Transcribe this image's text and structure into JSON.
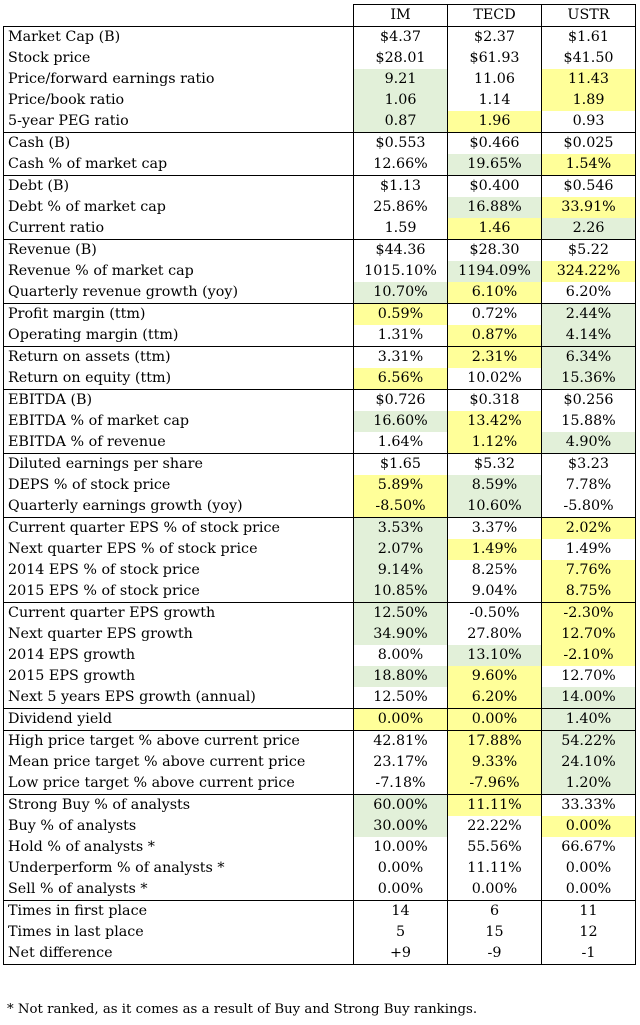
{
  "columns": [
    "IM",
    "TECD",
    "USTR"
  ],
  "colors": {
    "green": "#e2f0d9",
    "yellow": "#ffff99"
  },
  "sections": [
    {
      "rows": [
        {
          "label": "Market Cap (B)",
          "values": [
            "$4.37",
            "$2.37",
            "$1.61"
          ],
          "hl": [
            "",
            "",
            ""
          ]
        },
        {
          "label": "Stock price",
          "values": [
            "$28.01",
            "$61.93",
            "$41.50"
          ],
          "hl": [
            "",
            "",
            ""
          ]
        },
        {
          "label": "Price/forward earnings ratio",
          "values": [
            "9.21",
            "11.06",
            "11.43"
          ],
          "hl": [
            "g",
            "",
            "y"
          ]
        },
        {
          "label": "Price/book ratio",
          "values": [
            "1.06",
            "1.14",
            "1.89"
          ],
          "hl": [
            "g",
            "",
            "y"
          ]
        },
        {
          "label": "5-year PEG ratio",
          "values": [
            "0.87",
            "1.96",
            "0.93"
          ],
          "hl": [
            "g",
            "y",
            ""
          ]
        }
      ]
    },
    {
      "rows": [
        {
          "label": "Cash (B)",
          "values": [
            "$0.553",
            "$0.466",
            "$0.025"
          ],
          "hl": [
            "",
            "",
            ""
          ]
        },
        {
          "label": "Cash % of market cap",
          "values": [
            "12.66%",
            "19.65%",
            "1.54%"
          ],
          "hl": [
            "",
            "g",
            "y"
          ]
        }
      ]
    },
    {
      "rows": [
        {
          "label": "Debt (B)",
          "values": [
            "$1.13",
            "$0.400",
            "$0.546"
          ],
          "hl": [
            "",
            "",
            ""
          ]
        },
        {
          "label": "Debt % of market cap",
          "values": [
            "25.86%",
            "16.88%",
            "33.91%"
          ],
          "hl": [
            "",
            "g",
            "y"
          ]
        },
        {
          "label": "Current ratio",
          "values": [
            "1.59",
            "1.46",
            "2.26"
          ],
          "hl": [
            "",
            "y",
            "g"
          ]
        }
      ]
    },
    {
      "rows": [
        {
          "label": "Revenue (B)",
          "values": [
            "$44.36",
            "$28.30",
            "$5.22"
          ],
          "hl": [
            "",
            "",
            ""
          ]
        },
        {
          "label": "Revenue % of market cap",
          "values": [
            "1015.10%",
            "1194.09%",
            "324.22%"
          ],
          "hl": [
            "",
            "g",
            "y"
          ]
        },
        {
          "label": "Quarterly revenue growth (yoy)",
          "values": [
            "10.70%",
            "6.10%",
            "6.20%"
          ],
          "hl": [
            "g",
            "y",
            ""
          ]
        }
      ]
    },
    {
      "rows": [
        {
          "label": "Profit margin (ttm)",
          "values": [
            "0.59%",
            "0.72%",
            "2.44%"
          ],
          "hl": [
            "y",
            "",
            "g"
          ]
        },
        {
          "label": "Operating margin (ttm)",
          "values": [
            "1.31%",
            "0.87%",
            "4.14%"
          ],
          "hl": [
            "",
            "y",
            "g"
          ]
        }
      ]
    },
    {
      "rows": [
        {
          "label": "Return on assets (ttm)",
          "values": [
            "3.31%",
            "2.31%",
            "6.34%"
          ],
          "hl": [
            "",
            "y",
            "g"
          ]
        },
        {
          "label": "Return on equity (ttm)",
          "values": [
            "6.56%",
            "10.02%",
            "15.36%"
          ],
          "hl": [
            "y",
            "",
            "g"
          ]
        }
      ]
    },
    {
      "rows": [
        {
          "label": "EBITDA (B)",
          "values": [
            "$0.726",
            "$0.318",
            "$0.256"
          ],
          "hl": [
            "",
            "",
            ""
          ]
        },
        {
          "label": "EBITDA % of market cap",
          "values": [
            "16.60%",
            "13.42%",
            "15.88%"
          ],
          "hl": [
            "g",
            "y",
            ""
          ]
        },
        {
          "label": "EBITDA % of revenue",
          "values": [
            "1.64%",
            "1.12%",
            "4.90%"
          ],
          "hl": [
            "",
            "y",
            "g"
          ]
        }
      ]
    },
    {
      "rows": [
        {
          "label": "Diluted earnings per share",
          "values": [
            "$1.65",
            "$5.32",
            "$3.23"
          ],
          "hl": [
            "",
            "",
            ""
          ]
        },
        {
          "label": "DEPS % of stock price",
          "values": [
            "5.89%",
            "8.59%",
            "7.78%"
          ],
          "hl": [
            "y",
            "g",
            ""
          ]
        },
        {
          "label": "Quarterly earnings growth (yoy)",
          "values": [
            "-8.50%",
            "10.60%",
            "-5.80%"
          ],
          "hl": [
            "y",
            "g",
            ""
          ]
        }
      ]
    },
    {
      "rows": [
        {
          "label": "Current quarter EPS % of stock price",
          "values": [
            "3.53%",
            "3.37%",
            "2.02%"
          ],
          "hl": [
            "g",
            "",
            "y"
          ]
        },
        {
          "label": "Next quarter EPS % of stock price",
          "values": [
            "2.07%",
            "1.49%",
            "1.49%"
          ],
          "hl": [
            "g",
            "y",
            ""
          ]
        },
        {
          "label": "2014 EPS % of stock price",
          "values": [
            "9.14%",
            "8.25%",
            "7.76%"
          ],
          "hl": [
            "g",
            "",
            "y"
          ]
        },
        {
          "label": "2015 EPS % of stock price",
          "values": [
            "10.85%",
            "9.04%",
            "8.75%"
          ],
          "hl": [
            "g",
            "",
            "y"
          ]
        }
      ]
    },
    {
      "rows": [
        {
          "label": "Current quarter EPS growth",
          "values": [
            "12.50%",
            "-0.50%",
            "-2.30%"
          ],
          "hl": [
            "g",
            "",
            "y"
          ]
        },
        {
          "label": "Next quarter EPS growth",
          "values": [
            "34.90%",
            "27.80%",
            "12.70%"
          ],
          "hl": [
            "g",
            "",
            "y"
          ]
        },
        {
          "label": "2014 EPS growth",
          "values": [
            "8.00%",
            "13.10%",
            "-2.10%"
          ],
          "hl": [
            "",
            "g",
            "y"
          ]
        },
        {
          "label": "2015 EPS growth",
          "values": [
            "18.80%",
            "9.60%",
            "12.70%"
          ],
          "hl": [
            "g",
            "y",
            ""
          ]
        },
        {
          "label": "Next 5 years EPS growth (annual)",
          "values": [
            "12.50%",
            "6.20%",
            "14.00%"
          ],
          "hl": [
            "",
            "y",
            "g"
          ]
        }
      ]
    },
    {
      "rows": [
        {
          "label": "Dividend yield",
          "values": [
            "0.00%",
            "0.00%",
            "1.40%"
          ],
          "hl": [
            "y",
            "y",
            "g"
          ]
        }
      ]
    },
    {
      "rows": [
        {
          "label": "High price target % above current price",
          "values": [
            "42.81%",
            "17.88%",
            "54.22%"
          ],
          "hl": [
            "",
            "y",
            "g"
          ]
        },
        {
          "label": "Mean price target % above current price",
          "values": [
            "23.17%",
            "9.33%",
            "24.10%"
          ],
          "hl": [
            "",
            "y",
            "g"
          ]
        },
        {
          "label": "Low price target % above current price",
          "values": [
            "-7.18%",
            "-7.96%",
            "1.20%"
          ],
          "hl": [
            "",
            "y",
            "g"
          ]
        }
      ]
    },
    {
      "rows": [
        {
          "label": "Strong Buy % of analysts",
          "values": [
            "60.00%",
            "11.11%",
            "33.33%"
          ],
          "hl": [
            "g",
            "y",
            ""
          ]
        },
        {
          "label": "Buy % of analysts",
          "values": [
            "30.00%",
            "22.22%",
            "0.00%"
          ],
          "hl": [
            "g",
            "",
            "y"
          ]
        },
        {
          "label": "Hold % of analysts *",
          "values": [
            "10.00%",
            "55.56%",
            "66.67%"
          ],
          "hl": [
            "",
            "",
            ""
          ]
        },
        {
          "label": "Underperform % of analysts *",
          "values": [
            "0.00%",
            "11.11%",
            "0.00%"
          ],
          "hl": [
            "",
            "",
            ""
          ]
        },
        {
          "label": "Sell % of analysts *",
          "values": [
            "0.00%",
            "0.00%",
            "0.00%"
          ],
          "hl": [
            "",
            "",
            ""
          ]
        }
      ]
    },
    {
      "rows": [
        {
          "label": "Times in first place",
          "values": [
            "14",
            "6",
            "11"
          ],
          "hl": [
            "",
            "",
            ""
          ]
        },
        {
          "label": "Times in last place",
          "values": [
            "5",
            "15",
            "12"
          ],
          "hl": [
            "",
            "",
            ""
          ]
        },
        {
          "label": "Net difference",
          "values": [
            "+9",
            "-9",
            "-1"
          ],
          "hl": [
            "",
            "",
            ""
          ]
        }
      ]
    }
  ],
  "footnote": "* Not ranked, as it comes as a result of Buy and Strong Buy rankings."
}
